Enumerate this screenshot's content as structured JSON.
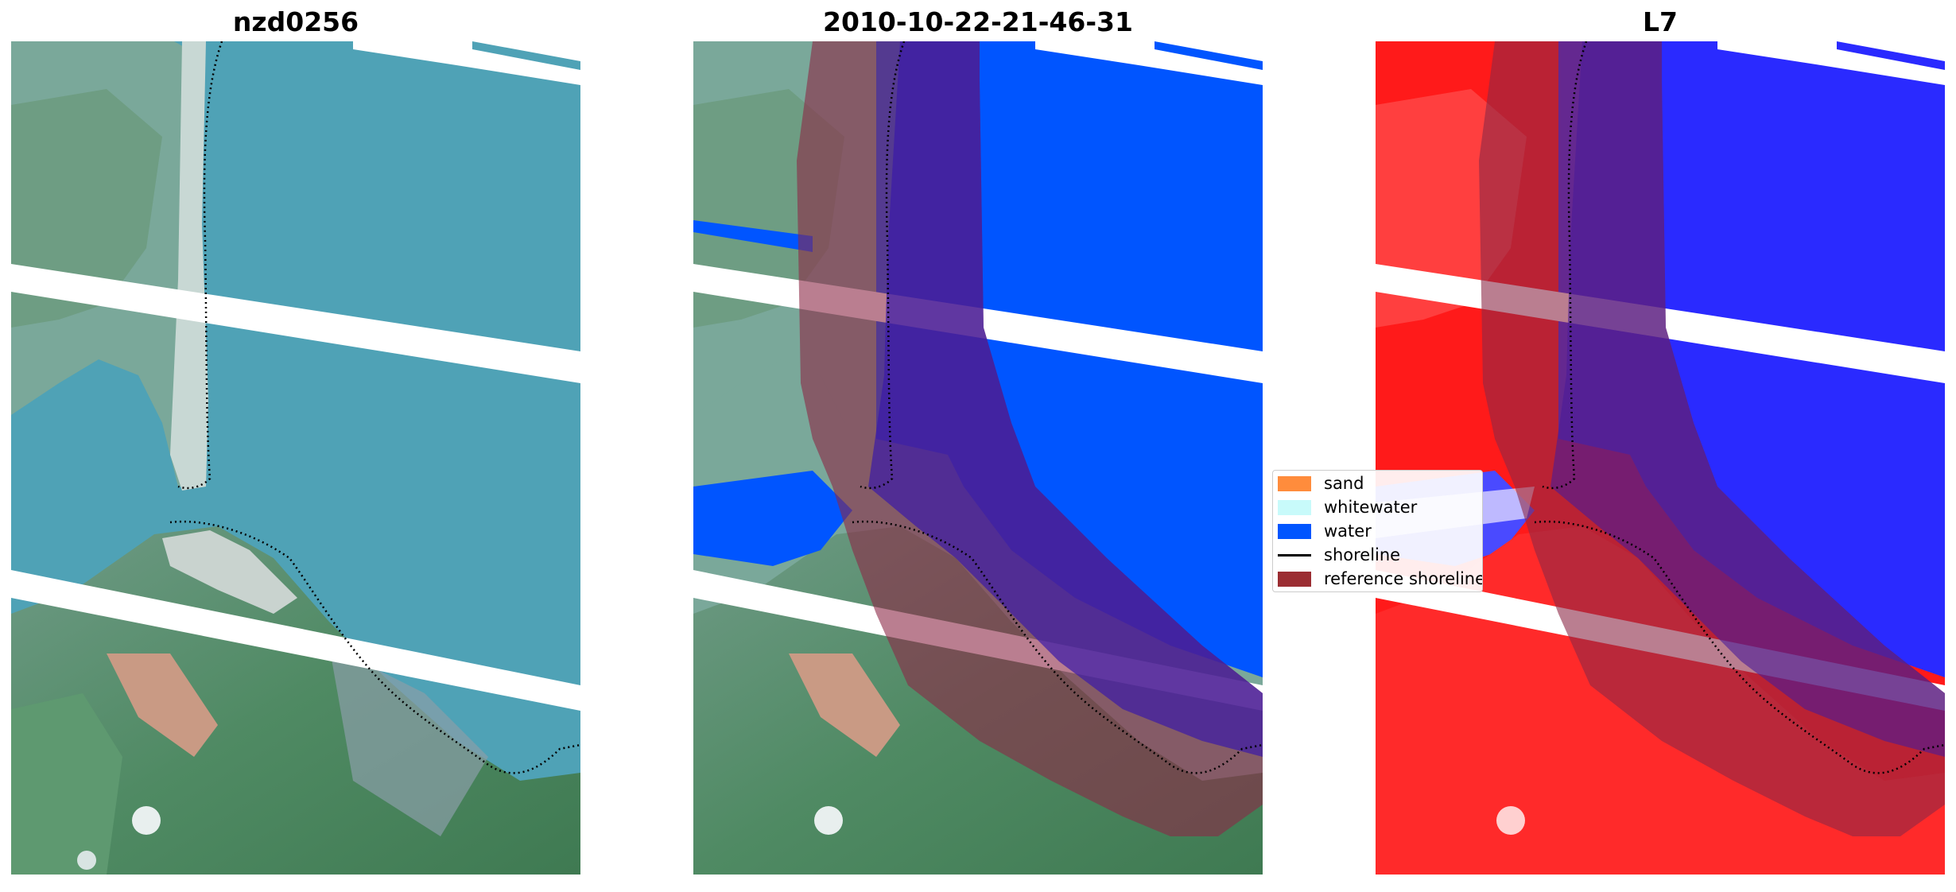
{
  "panels": [
    {
      "title": "nzd0256",
      "kind": "rgb"
    },
    {
      "title": "2010-10-22-21-46-31",
      "kind": "classified"
    },
    {
      "title": "L7",
      "kind": "index"
    }
  ],
  "legend": {
    "items": [
      {
        "label": "sand",
        "color": "#ff8c3c",
        "kind": "patch"
      },
      {
        "label": "whitewater",
        "color": "#c8fafa",
        "kind": "patch"
      },
      {
        "label": "water",
        "color": "#0055ff",
        "kind": "patch"
      },
      {
        "label": "shoreline",
        "color": "#000000",
        "kind": "line"
      },
      {
        "label": "reference shoreline buffer",
        "color": "#9b2d32",
        "kind": "patch"
      }
    ]
  },
  "colors": {
    "rgb_water": "#4fa2b6",
    "rgb_land": "#5a8c6a",
    "class_water": "#0055ff",
    "buffer": "#8c2846",
    "index_high": "#ff1a1a",
    "index_low": "#2a2aff"
  }
}
